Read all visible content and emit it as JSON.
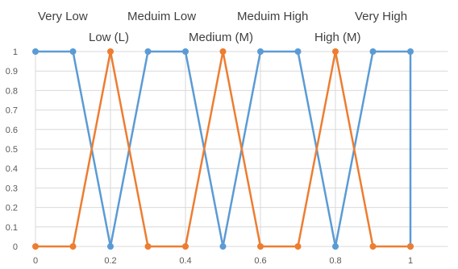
{
  "chart_data": {
    "type": "line",
    "title": "",
    "xlabel": "",
    "ylabel": "",
    "xlim": [
      0,
      1.1
    ],
    "ylim": [
      0,
      1
    ],
    "grid": true,
    "x_ticks": [
      "0",
      "0.2",
      "0.4",
      "0.6",
      "0.8",
      "1"
    ],
    "y_ticks": [
      "0",
      "0.1",
      "0.2",
      "0.3",
      "0.4",
      "0.5",
      "0.6",
      "0.7",
      "0.8",
      "0.9",
      "1"
    ],
    "term_labels_top": [
      "Very Low",
      "Meduim Low",
      "Meduim High",
      "Very High"
    ],
    "term_labels_bottom": [
      "Low (L)",
      "Medium (M)",
      "High (M)"
    ],
    "series": [
      {
        "color": "#5b9bd5",
        "x": [
          0,
          0.1,
          0.2,
          0.3,
          0.4,
          0.5,
          0.6,
          0.7,
          0.8,
          0.9,
          1,
          1
        ],
        "y": [
          1,
          1,
          0,
          1,
          1,
          0,
          1,
          1,
          0,
          1,
          1,
          0
        ]
      },
      {
        "color": "#ed7d31",
        "x": [
          0,
          0.1,
          0.2,
          0.3,
          0.4,
          0.5,
          0.6,
          0.7,
          0.8,
          0.9,
          1
        ],
        "y": [
          0,
          0,
          1,
          0,
          0,
          1,
          0,
          0,
          1,
          0,
          0
        ]
      }
    ]
  }
}
